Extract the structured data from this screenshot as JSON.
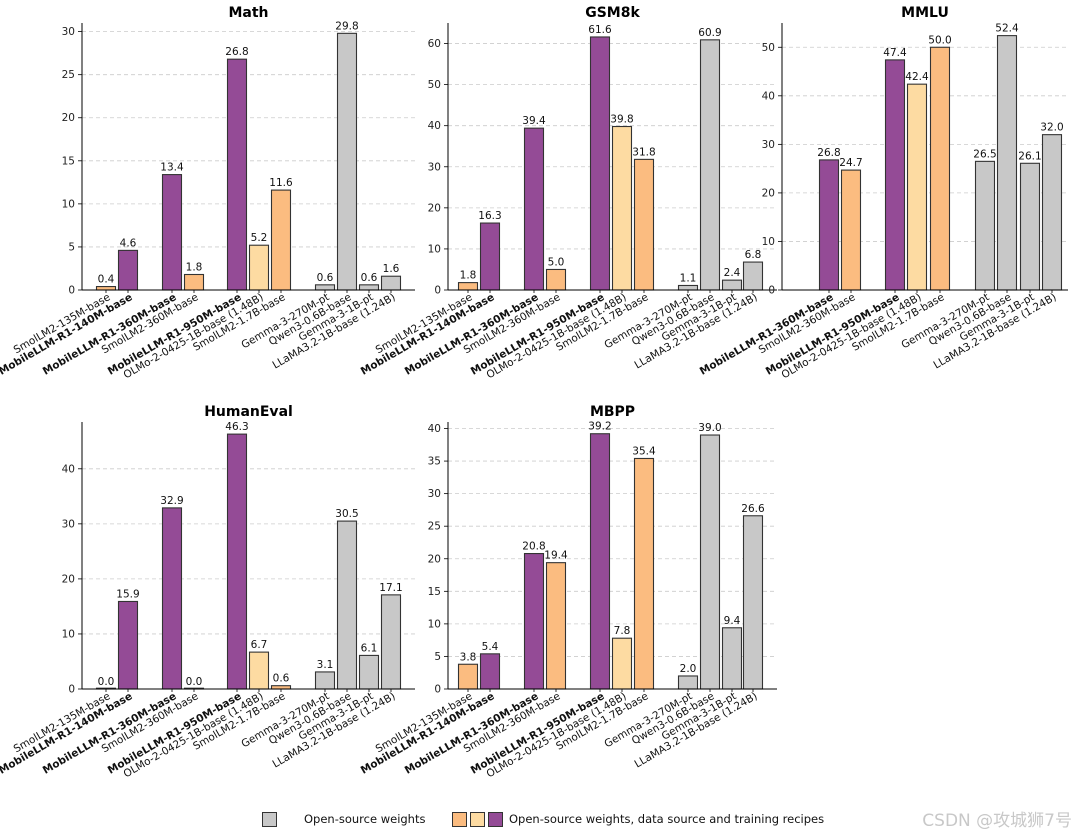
{
  "colors": {
    "purple": "#944b96",
    "light_orange": "#fddba2",
    "orange": "#fbbc80",
    "grey": "#c8c8c8",
    "edge": "#333333",
    "grid": "#cccccc"
  },
  "legend": {
    "open_label": "Open-source weights",
    "full_label": "Open-source weights, data source and training recipes"
  },
  "watermark": "CSDN @攻城狮7号",
  "chart_data": [
    {
      "type": "bar",
      "title": "Math",
      "ylim": [
        0,
        31
      ],
      "yticks": [
        0,
        5,
        10,
        15,
        20,
        25,
        30
      ],
      "grid": true,
      "categories": [
        "SmolLM2-135M-base",
        "MobileLLM-R1-140M-base",
        "MobileLLM-R1-360M-base",
        "SmolLM2-360M-base",
        "MobileLLM-R1-950M-base",
        "OLMo-2-0425-1B-base (1.48B)",
        "SmolLM2-1.7B-base",
        "Gemma-3-270M-pt",
        "Qwen3-0.6B-base",
        "Gemma-3-1B-pt",
        "LLaMA3.2-1B-base (1.24B)"
      ],
      "values": [
        0.4,
        4.6,
        13.4,
        1.8,
        26.8,
        5.2,
        11.6,
        0.6,
        29.8,
        0.6,
        1.6
      ],
      "value_labels": [
        "0.4",
        "4.6",
        "13.4",
        "1.8",
        "26.8",
        "5.2",
        "11.6",
        "0.6",
        "29.8",
        "0.6",
        "1.6"
      ],
      "bar_colors": [
        "orange",
        "purple",
        "purple",
        "orange",
        "purple",
        "light_orange",
        "orange",
        "grey",
        "grey",
        "grey",
        "grey"
      ],
      "bold": [
        false,
        true,
        true,
        false,
        true,
        false,
        false,
        false,
        false,
        false,
        false
      ]
    },
    {
      "type": "bar",
      "title": "GSM8k",
      "ylim": [
        0,
        65
      ],
      "yticks": [
        0,
        10,
        20,
        30,
        40,
        50,
        60
      ],
      "grid": true,
      "categories": [
        "SmolLM2-135M-base",
        "MobileLLM-R1-140M-base",
        "MobileLLM-R1-360M-base",
        "SmolLM2-360M-base",
        "MobileLLM-R1-950M-base",
        "OLMo-2-0425-1B-base (1.48B)",
        "SmolLM2-1.7B-base",
        "Gemma-3-270M-pt",
        "Qwen3-0.6B-base",
        "Gemma-3-1B-pt",
        "LLaMA3.2-1B-base (1.24B)"
      ],
      "values": [
        1.8,
        16.3,
        39.4,
        5.0,
        61.6,
        39.8,
        31.8,
        1.1,
        60.9,
        2.4,
        6.8
      ],
      "value_labels": [
        "1.8",
        "16.3",
        "39.4",
        "5.0",
        "61.6",
        "39.8",
        "31.8",
        "1.1",
        "60.9",
        "2.4",
        "6.8"
      ],
      "bar_colors": [
        "orange",
        "purple",
        "purple",
        "orange",
        "purple",
        "light_orange",
        "orange",
        "grey",
        "grey",
        "grey",
        "grey"
      ],
      "bold": [
        false,
        true,
        true,
        false,
        true,
        false,
        false,
        false,
        false,
        false,
        false
      ]
    },
    {
      "type": "bar",
      "title": "MMLU",
      "ylim": [
        0,
        55
      ],
      "yticks": [
        0,
        10,
        20,
        30,
        40,
        50
      ],
      "grid": true,
      "categories": [
        "MobileLLM-R1-360M-base",
        "SmolLM2-360M-base",
        "MobileLLM-R1-950M-base",
        "OLMo-2-0425-1B-base (1.48B)",
        "SmolLM2-1.7B-base",
        "Gemma-3-270M-pt",
        "Qwen3-0.6B-base",
        "Gemma-3-1B-pt",
        "LLaMA3.2-1B-base (1.24B)"
      ],
      "values": [
        26.8,
        24.7,
        47.4,
        42.4,
        50.0,
        26.5,
        52.4,
        26.1,
        32.0
      ],
      "value_labels": [
        "26.8",
        "24.7",
        "47.4",
        "42.4",
        "50.0",
        "26.5",
        "52.4",
        "26.1",
        "32.0"
      ],
      "bar_colors": [
        "purple",
        "orange",
        "purple",
        "light_orange",
        "orange",
        "grey",
        "grey",
        "grey",
        "grey"
      ],
      "bold": [
        true,
        false,
        true,
        false,
        false,
        false,
        false,
        false,
        false
      ]
    },
    {
      "type": "bar",
      "title": "HumanEval",
      "ylim": [
        0,
        48.5
      ],
      "yticks": [
        0,
        10,
        20,
        30,
        40
      ],
      "grid": true,
      "categories": [
        "SmolLM2-135M-base",
        "MobileLLM-R1-140M-base",
        "MobileLLM-R1-360M-base",
        "SmolLM2-360M-base",
        "MobileLLM-R1-950M-base",
        "OLMo-2-0425-1B-base (1.48B)",
        "SmolLM2-1.7B-base",
        "Gemma-3-270M-pt",
        "Qwen3-0.6B-base",
        "Gemma-3-1B-pt",
        "LLaMA3.2-1B-base (1.24B)"
      ],
      "values": [
        0.0,
        15.9,
        32.9,
        0.0,
        46.3,
        6.7,
        0.6,
        3.1,
        30.5,
        6.1,
        17.1
      ],
      "value_labels": [
        "0.0",
        "15.9",
        "32.9",
        "0.0",
        "46.3",
        "6.7",
        "0.6",
        "3.1",
        "30.5",
        "6.1",
        "17.1"
      ],
      "bar_colors": [
        "orange",
        "purple",
        "purple",
        "orange",
        "purple",
        "light_orange",
        "orange",
        "grey",
        "grey",
        "grey",
        "grey"
      ],
      "bold": [
        false,
        true,
        true,
        false,
        true,
        false,
        false,
        false,
        false,
        false,
        false
      ]
    },
    {
      "type": "bar",
      "title": "MBPP",
      "ylim": [
        0,
        41
      ],
      "yticks": [
        0,
        5,
        10,
        15,
        20,
        25,
        30,
        35,
        40
      ],
      "grid": true,
      "categories": [
        "SmolLM2-135M-base",
        "MobileLLM-R1-140M-base",
        "MobileLLM-R1-360M-base",
        "SmolLM2-360M-base",
        "MobileLLM-R1-950M-base",
        "OLMo-2-0425-1B-base (1.48B)",
        "SmolLM2-1.7B-base",
        "Gemma-3-270M-pt",
        "Qwen3-0.6B-base",
        "Gemma-3-1B-pt",
        "LLaMA3.2-1B-base (1.24B)"
      ],
      "values": [
        3.8,
        5.4,
        20.8,
        19.4,
        39.2,
        7.8,
        35.4,
        2.0,
        39.0,
        9.4,
        26.6
      ],
      "value_labels": [
        "3.8",
        "5.4",
        "20.8",
        "19.4",
        "39.2",
        "7.8",
        "35.4",
        "2.0",
        "39.0",
        "9.4",
        "26.6"
      ],
      "bar_colors": [
        "orange",
        "purple",
        "purple",
        "orange",
        "purple",
        "light_orange",
        "orange",
        "grey",
        "grey",
        "grey",
        "grey"
      ],
      "bold": [
        false,
        true,
        true,
        false,
        true,
        false,
        false,
        false,
        false,
        false,
        false
      ]
    }
  ]
}
